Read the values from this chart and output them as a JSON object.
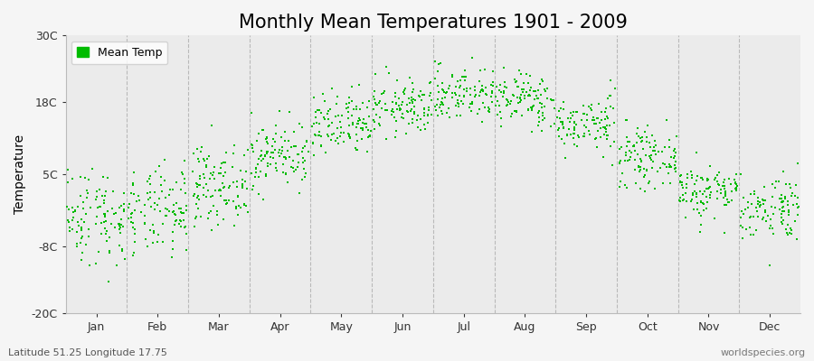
{
  "title": "Monthly Mean Temperatures 1901 - 2009",
  "ylabel": "Temperature",
  "subtitle_left": "Latitude 51.25 Longitude 17.75",
  "subtitle_right": "worldspecies.org",
  "yticks": [
    -20,
    -8,
    5,
    18,
    30
  ],
  "ytick_labels": [
    "-20C",
    "-8C",
    "5C",
    "18C",
    "30C"
  ],
  "ylim": [
    -20,
    30
  ],
  "months": [
    "Jan",
    "Feb",
    "Mar",
    "Apr",
    "May",
    "Jun",
    "Jul",
    "Aug",
    "Sep",
    "Oct",
    "Nov",
    "Dec"
  ],
  "month_means": [
    -2.5,
    -2.0,
    3.0,
    8.5,
    13.5,
    17.0,
    19.5,
    18.5,
    14.0,
    8.0,
    2.0,
    -1.0
  ],
  "month_stds": [
    4.5,
    4.0,
    3.5,
    3.0,
    3.0,
    2.5,
    2.5,
    2.5,
    2.5,
    2.5,
    2.5,
    3.0
  ],
  "n_years": 109,
  "scatter_color": "#00bb00",
  "scatter_size": 4,
  "background_color": "#f5f5f5",
  "plot_bg_color": "#ebebeb",
  "legend_label": "Mean Temp",
  "title_fontsize": 15,
  "label_fontsize": 10,
  "tick_fontsize": 9,
  "grid_color": "#999999",
  "jitter_scale": 0.48
}
